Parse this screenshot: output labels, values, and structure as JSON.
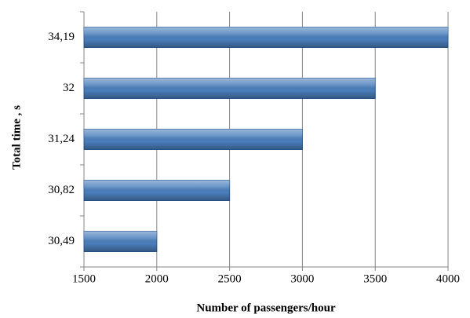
{
  "chart_data": {
    "type": "barh",
    "x_label": "Number of passengers/hour",
    "y_label": "Total time , s",
    "categories": [
      "30,49",
      "30,82",
      "31,24",
      "32",
      "34,19"
    ],
    "values": [
      2000,
      2500,
      3000,
      3500,
      4000
    ],
    "color": "#4a7ebb",
    "xlim": [
      1500,
      4000
    ],
    "xticks": [
      1500,
      2000,
      2500,
      3000,
      3500,
      4000
    ],
    "grid": true
  }
}
